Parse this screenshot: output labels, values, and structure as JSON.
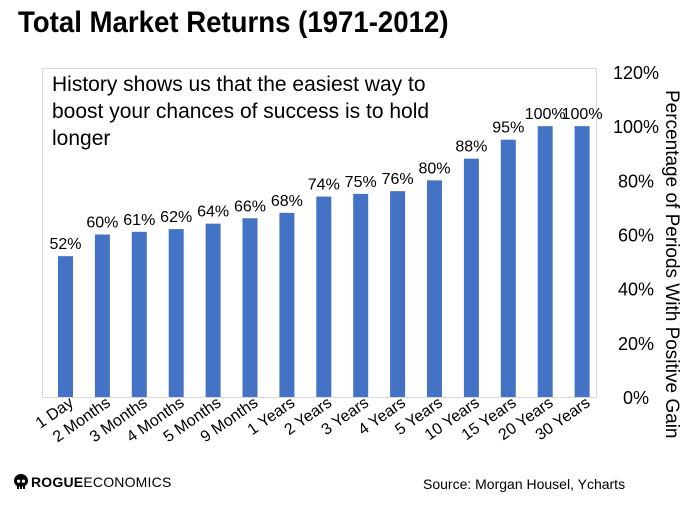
{
  "title": "Total Market Returns (1971-2012)",
  "callout": "History shows us that the easiest way to boost your chances of success is to hold longer",
  "source": "Source: Morgan Housel, Ycharts",
  "logo": {
    "bold": "ROGUE",
    "normal": " ECONOMICS",
    "icon": "rogue-skull-icon"
  },
  "chart_data": {
    "type": "bar",
    "categories": [
      "1 Day",
      "2 Months",
      "3 Months",
      "4 Months",
      "5 Months",
      "9 Months",
      "1 Years",
      "2 Years",
      "3 Years",
      "4 Years",
      "5 Years",
      "10 Years",
      "15 Years",
      "20 Years",
      "30 Years"
    ],
    "values": [
      52,
      60,
      61,
      62,
      64,
      66,
      68,
      74,
      75,
      76,
      80,
      88,
      95,
      100,
      100
    ],
    "value_labels": [
      "52%",
      "60%",
      "61%",
      "62%",
      "64%",
      "66%",
      "68%",
      "74%",
      "75%",
      "76%",
      "80%",
      "88%",
      "95%",
      "100%",
      "100%"
    ],
    "ylim": [
      0,
      120
    ],
    "yticks": [
      "0%",
      "20%",
      "40%",
      "60%",
      "80%",
      "100%",
      "120%"
    ],
    "ylabel": "Percentage of Periods With Positive Gain",
    "y_axis_side": "right",
    "grid": false,
    "bar_color": "#4472C4"
  }
}
